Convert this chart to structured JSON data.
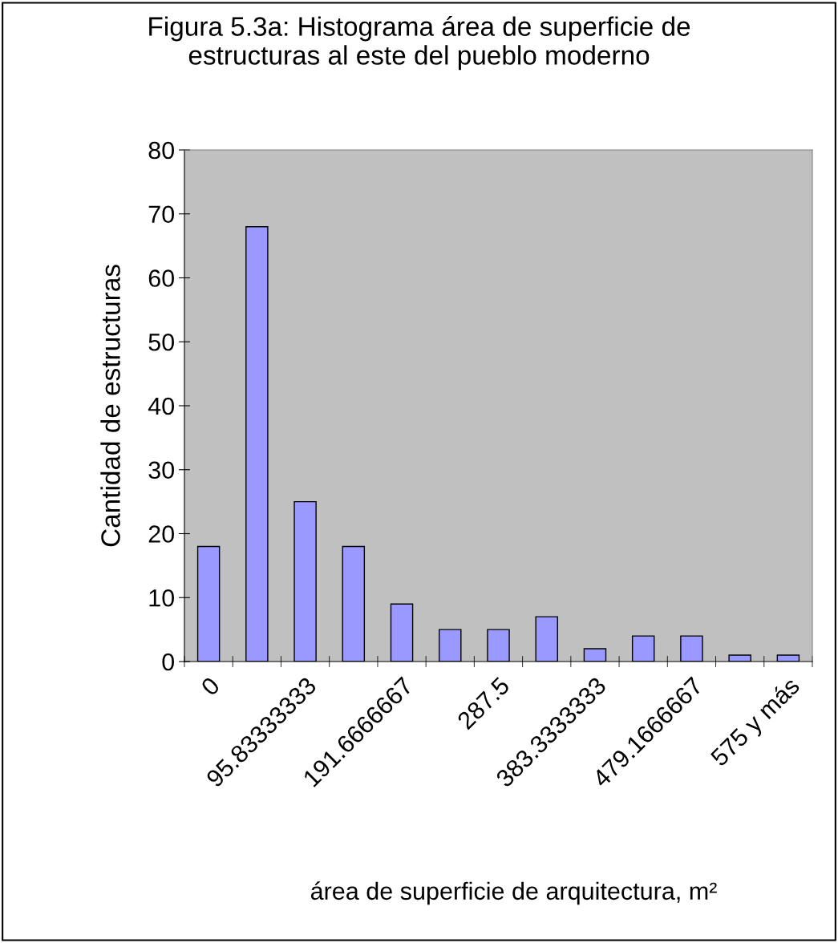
{
  "chart_data": {
    "type": "bar",
    "title": "Figura 5.3a: Histograma área de superficie de\nestructuras al este del pueblo moderno",
    "xlabel": "área de superficie de arquitectura, m²",
    "ylabel": "Cantidad de estructuras",
    "categories": [
      "0",
      null,
      "95.83333333",
      null,
      "191.6666667",
      null,
      "287.5",
      null,
      "383.3333333",
      null,
      "479.1666667",
      null,
      "575 y más"
    ],
    "values": [
      18,
      68,
      25,
      18,
      9,
      5,
      5,
      7,
      2,
      4,
      4,
      1,
      1
    ],
    "color": "#9999ff",
    "ylim": [
      0,
      80
    ],
    "yticks": [
      0,
      10,
      20,
      30,
      40,
      50,
      60,
      70,
      80
    ],
    "grid": false,
    "legend": false
  }
}
